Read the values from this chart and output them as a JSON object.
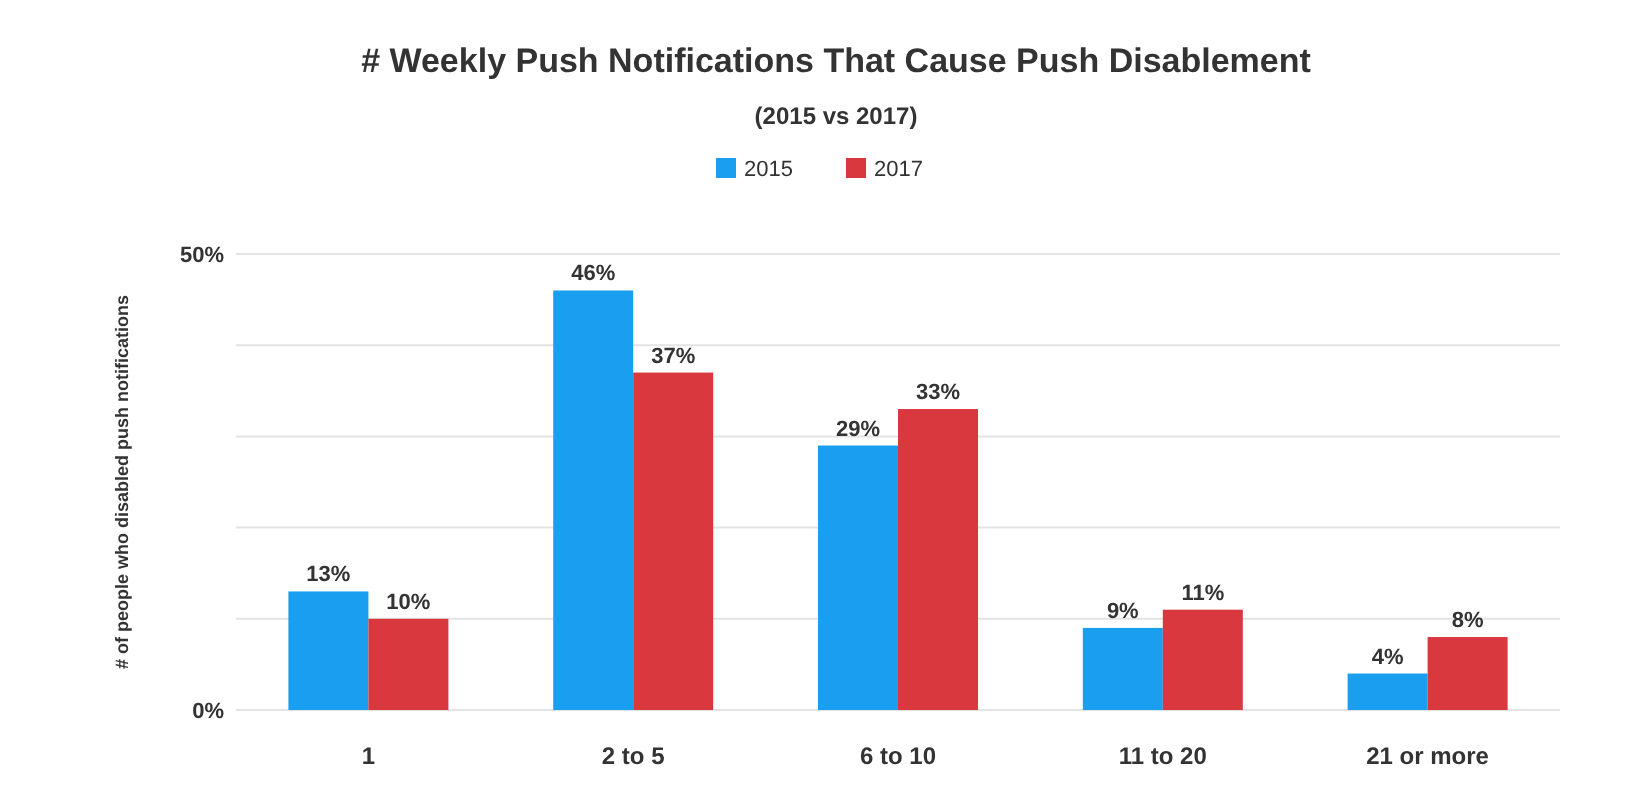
{
  "chart_data": {
    "type": "bar",
    "title": "# Weekly Push Notifications That Cause Push Disablement",
    "subtitle": "(2015 vs 2017)",
    "ylabel": "# of people who disabled push notifications",
    "categories": [
      "1",
      "2 to 5",
      "6 to 10",
      "11 to 20",
      "21 or more"
    ],
    "series": [
      {
        "name": "2015",
        "color": "#1a9ff0",
        "values": [
          13,
          46,
          29,
          9,
          4
        ],
        "value_labels": [
          "13%",
          "46%",
          "29%",
          "9%",
          "4%"
        ]
      },
      {
        "name": "2017",
        "color": "#d9393e",
        "values": [
          10,
          37,
          33,
          11,
          8
        ],
        "value_labels": [
          "10%",
          "37%",
          "33%",
          "11%",
          "8%"
        ]
      }
    ],
    "ylim": [
      0,
      50
    ],
    "yticks": [
      {
        "value": 0,
        "label": "0%"
      },
      {
        "value": 10,
        "label": null
      },
      {
        "value": 20,
        "label": null
      },
      {
        "value": 30,
        "label": null
      },
      {
        "value": 40,
        "label": null
      },
      {
        "value": 50,
        "label": "50%"
      }
    ],
    "grid": "y",
    "legend": "top"
  }
}
